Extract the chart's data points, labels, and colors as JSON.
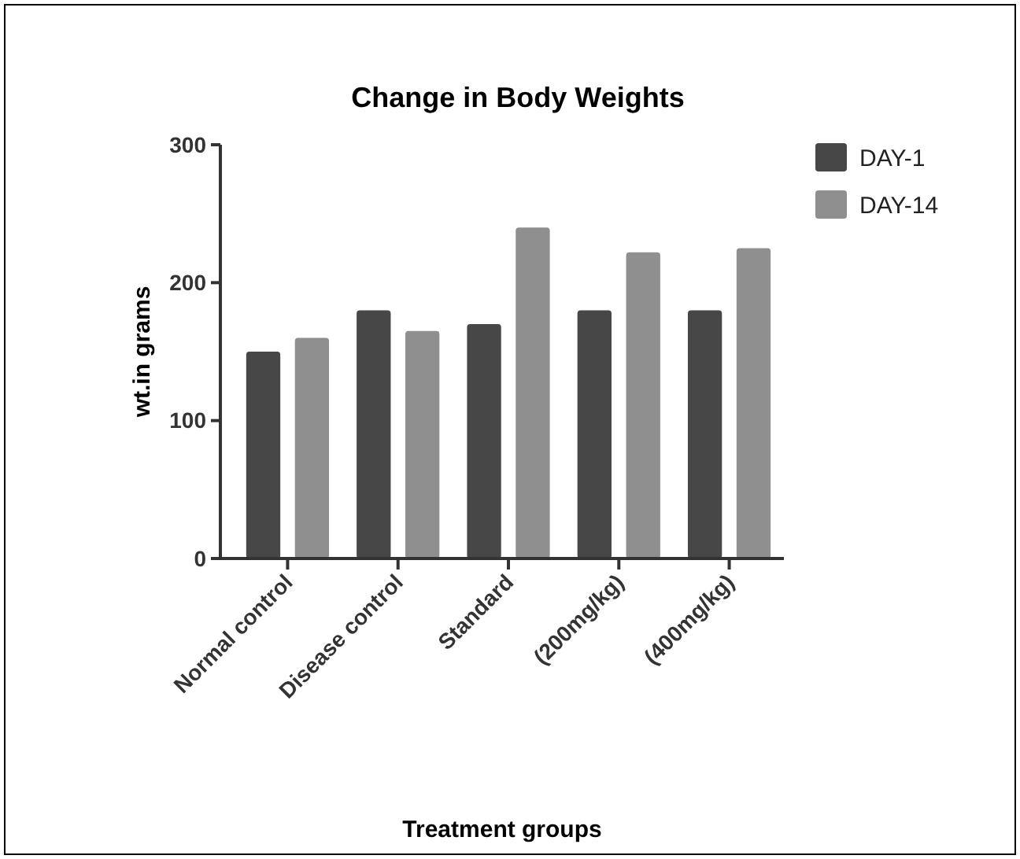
{
  "chart_data": {
    "type": "bar",
    "title": "Change in Body Weights",
    "xlabel": "Treatment groups",
    "ylabel": "wt.in grams",
    "categories": [
      "Normal control",
      "Disease control",
      "Standard",
      "(200mg/kg)",
      "(400mg/kg)"
    ],
    "series": [
      {
        "name": "DAY-1",
        "color": "#474747",
        "values": [
          150,
          180,
          170,
          180,
          180
        ]
      },
      {
        "name": "DAY-14",
        "color": "#8f8f8f",
        "values": [
          160,
          165,
          240,
          222,
          225
        ]
      }
    ],
    "ylim": [
      0,
      300
    ],
    "yticks": [
      0,
      100,
      200,
      300
    ],
    "grid": false,
    "legend": "top right"
  }
}
